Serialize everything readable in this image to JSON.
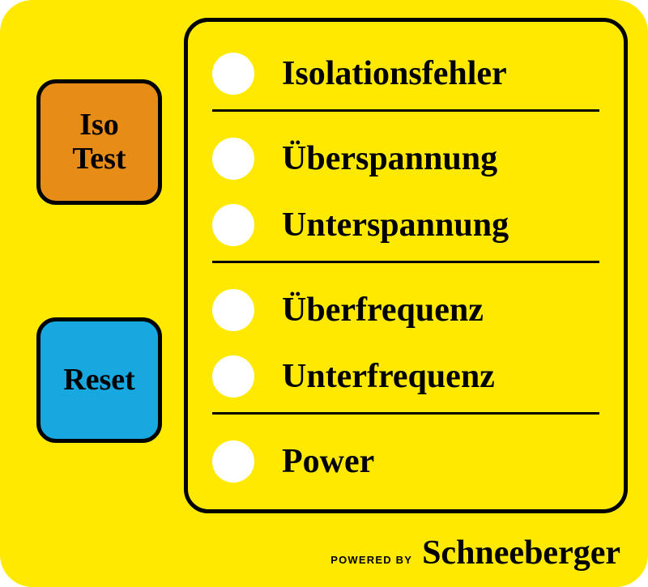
{
  "colors": {
    "panel_bg": "#ffe900",
    "iso_bg": "#e78c17",
    "reset_bg": "#18a8e0",
    "border": "#000000",
    "led": "#ffffff",
    "text": "#000000"
  },
  "buttons": {
    "iso_test": "Iso\nTest",
    "reset": "Reset"
  },
  "status": {
    "groups": [
      {
        "items": [
          "Isolationsfehler"
        ]
      },
      {
        "items": [
          "Überspannung",
          "Unterspannung"
        ]
      },
      {
        "items": [
          "Überfrequenz",
          "Unterfrequenz"
        ]
      },
      {
        "items": [
          "Power"
        ]
      }
    ]
  },
  "credit": {
    "prefix": "POWERED BY",
    "brand": "Schneeberger"
  }
}
